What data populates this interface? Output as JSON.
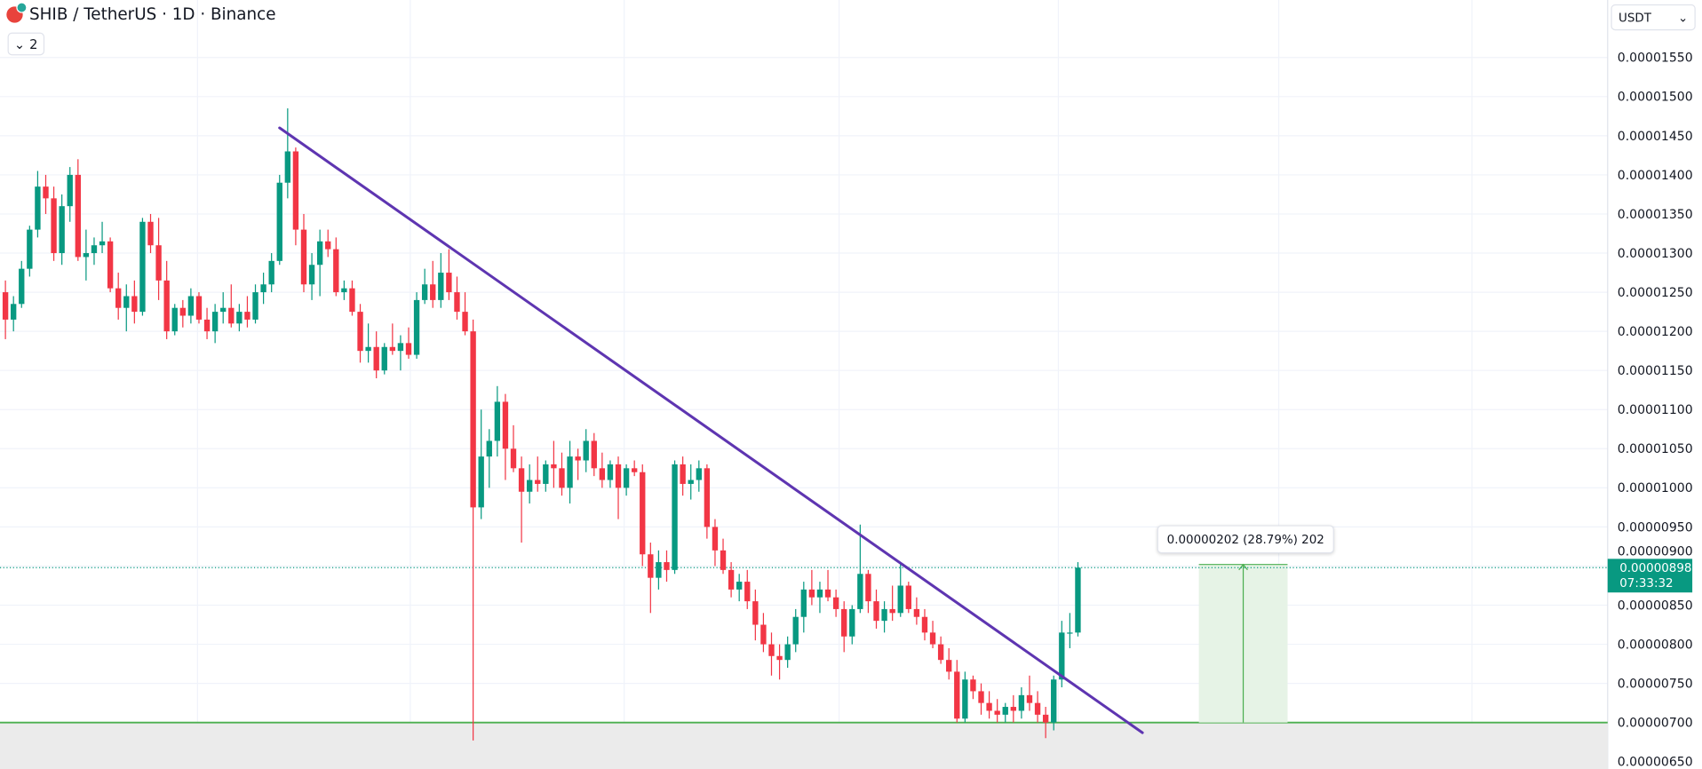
{
  "header": {
    "symbol": "SHIB",
    "title": "SHIB / TetherUS · 1D · Binance",
    "indicator_count": "2",
    "currency": "USDT"
  },
  "colors": {
    "up": "#089981",
    "down": "#f23645",
    "trendline": "#5e35b1",
    "support": "#4caf50",
    "measure_fill": "#e6f3e6",
    "grid": "#f0f3fa"
  },
  "chart_data": {
    "type": "candlestick",
    "title": "SHIB / TetherUS · 1D · Binance",
    "ylim": [
      6.3e-06,
      1.59e-05
    ],
    "y_ticks": [
      "0.00001550",
      "0.00001500",
      "0.00001450",
      "0.00001400",
      "0.00001350",
      "0.00001300",
      "0.00001250",
      "0.00001200",
      "0.00001150",
      "0.00001100",
      "0.00001050",
      "0.00001000",
      "0.00000950",
      "0.00000900",
      "0.00000850",
      "0.00000800",
      "0.00000750",
      "0.00000700",
      "0.00000650"
    ],
    "grid": true,
    "ohlc": [
      [
        1.25e-05,
        1.265e-05,
        1.19e-05,
        1.215e-05
      ],
      [
        1.215e-05,
        1.245e-05,
        1.2e-05,
        1.235e-05
      ],
      [
        1.235e-05,
        1.29e-05,
        1.23e-05,
        1.28e-05
      ],
      [
        1.28e-05,
        1.335e-05,
        1.27e-05,
        1.33e-05
      ],
      [
        1.33e-05,
        1.405e-05,
        1.32e-05,
        1.385e-05
      ],
      [
        1.385e-05,
        1.4e-05,
        1.35e-05,
        1.37e-05
      ],
      [
        1.37e-05,
        1.385e-05,
        1.29e-05,
        1.3e-05
      ],
      [
        1.3e-05,
        1.375e-05,
        1.285e-05,
        1.36e-05
      ],
      [
        1.36e-05,
        1.41e-05,
        1.34e-05,
        1.4e-05
      ],
      [
        1.4e-05,
        1.42e-05,
        1.29e-05,
        1.295e-05
      ],
      [
        1.295e-05,
        1.33e-05,
        1.265e-05,
        1.3e-05
      ],
      [
        1.3e-05,
        1.32e-05,
        1.285e-05,
        1.31e-05
      ],
      [
        1.31e-05,
        1.34e-05,
        1.3e-05,
        1.315e-05
      ],
      [
        1.315e-05,
        1.32e-05,
        1.25e-05,
        1.255e-05
      ],
      [
        1.255e-05,
        1.275e-05,
        1.215e-05,
        1.23e-05
      ],
      [
        1.23e-05,
        1.26e-05,
        1.2e-05,
        1.245e-05
      ],
      [
        1.245e-05,
        1.265e-05,
        1.21e-05,
        1.225e-05
      ],
      [
        1.225e-05,
        1.345e-05,
        1.22e-05,
        1.34e-05
      ],
      [
        1.34e-05,
        1.35e-05,
        1.3e-05,
        1.31e-05
      ],
      [
        1.31e-05,
        1.345e-05,
        1.24e-05,
        1.265e-05
      ],
      [
        1.265e-05,
        1.29e-05,
        1.19e-05,
        1.2e-05
      ],
      [
        1.2e-05,
        1.235e-05,
        1.195e-05,
        1.23e-05
      ],
      [
        1.23e-05,
        1.24e-05,
        1.205e-05,
        1.22e-05
      ],
      [
        1.22e-05,
        1.255e-05,
        1.21e-05,
        1.245e-05
      ],
      [
        1.245e-05,
        1.25e-05,
        1.21e-05,
        1.215e-05
      ],
      [
        1.215e-05,
        1.23e-05,
        1.19e-05,
        1.2e-05
      ],
      [
        1.2e-05,
        1.235e-05,
        1.185e-05,
        1.225e-05
      ],
      [
        1.225e-05,
        1.25e-05,
        1.21e-05,
        1.23e-05
      ],
      [
        1.23e-05,
        1.26e-05,
        1.205e-05,
        1.21e-05
      ],
      [
        1.21e-05,
        1.235e-05,
        1.2e-05,
        1.225e-05
      ],
      [
        1.225e-05,
        1.245e-05,
        1.205e-05,
        1.215e-05
      ],
      [
        1.215e-05,
        1.26e-05,
        1.21e-05,
        1.25e-05
      ],
      [
        1.25e-05,
        1.275e-05,
        1.235e-05,
        1.26e-05
      ],
      [
        1.26e-05,
        1.3e-05,
        1.25e-05,
        1.29e-05
      ],
      [
        1.29e-05,
        1.4e-05,
        1.285e-05,
        1.39e-05
      ],
      [
        1.39e-05,
        1.485e-05,
        1.37e-05,
        1.43e-05
      ],
      [
        1.43e-05,
        1.435e-05,
        1.31e-05,
        1.33e-05
      ],
      [
        1.33e-05,
        1.35e-05,
        1.25e-05,
        1.26e-05
      ],
      [
        1.26e-05,
        1.3e-05,
        1.24e-05,
        1.285e-05
      ],
      [
        1.285e-05,
        1.33e-05,
        1.245e-05,
        1.315e-05
      ],
      [
        1.315e-05,
        1.33e-05,
        1.295e-05,
        1.305e-05
      ],
      [
        1.305e-05,
        1.32e-05,
        1.245e-05,
        1.25e-05
      ],
      [
        1.25e-05,
        1.265e-05,
        1.24e-05,
        1.255e-05
      ],
      [
        1.255e-05,
        1.265e-05,
        1.22e-05,
        1.225e-05
      ],
      [
        1.225e-05,
        1.235e-05,
        1.16e-05,
        1.175e-05
      ],
      [
        1.175e-05,
        1.21e-05,
        1.16e-05,
        1.18e-05
      ],
      [
        1.18e-05,
        1.2e-05,
        1.14e-05,
        1.15e-05
      ],
      [
        1.15e-05,
        1.185e-05,
        1.145e-05,
        1.18e-05
      ],
      [
        1.18e-05,
        1.21e-05,
        1.17e-05,
        1.175e-05
      ],
      [
        1.175e-05,
        1.195e-05,
        1.15e-05,
        1.185e-05
      ],
      [
        1.185e-05,
        1.205e-05,
        1.165e-05,
        1.17e-05
      ],
      [
        1.17e-05,
        1.25e-05,
        1.165e-05,
        1.24e-05
      ],
      [
        1.24e-05,
        1.28e-05,
        1.235e-05,
        1.26e-05
      ],
      [
        1.26e-05,
        1.29e-05,
        1.23e-05,
        1.24e-05
      ],
      [
        1.24e-05,
        1.3e-05,
        1.23e-05,
        1.275e-05
      ],
      [
        1.275e-05,
        1.305e-05,
        1.24e-05,
        1.25e-05
      ],
      [
        1.25e-05,
        1.27e-05,
        1.215e-05,
        1.225e-05
      ],
      [
        1.225e-05,
        1.25e-05,
        1.195e-05,
        1.2e-05
      ],
      [
        1.2e-05,
        1.215e-05,
        6.77e-06,
        9.75e-06
      ],
      [
        9.75e-06,
        1.1e-05,
        9.6e-06,
        1.04e-05
      ],
      [
        1.04e-05,
        1.075e-05,
        1e-05,
        1.06e-05
      ],
      [
        1.06e-05,
        1.13e-05,
        1.04e-05,
        1.11e-05
      ],
      [
        1.11e-05,
        1.12e-05,
        1.01e-05,
        1.05e-05
      ],
      [
        1.05e-05,
        1.08e-05,
        1.02e-05,
        1.025e-05
      ],
      [
        1.025e-05,
        1.04e-05,
        9.3e-06,
        9.95e-06
      ],
      [
        9.95e-06,
        1.03e-05,
        9.8e-06,
        1.01e-05
      ],
      [
        1.01e-05,
        1.04e-05,
        9.95e-06,
        1.005e-05
      ],
      [
        1.005e-05,
        1.035e-05,
        9.95e-06,
        1.03e-05
      ],
      [
        1.03e-05,
        1.06e-05,
        1e-05,
        1.025e-05
      ],
      [
        1.025e-05,
        1.045e-05,
        9.9e-06,
        1e-05
      ],
      [
        1e-05,
        1.06e-05,
        9.8e-06,
        1.04e-05
      ],
      [
        1.04e-05,
        1.05e-05,
        1.01e-05,
        1.035e-05
      ],
      [
        1.035e-05,
        1.075e-05,
        1.02e-05,
        1.06e-05
      ],
      [
        1.06e-05,
        1.07e-05,
        1.015e-05,
        1.025e-05
      ],
      [
        1.025e-05,
        1.045e-05,
        1e-05,
        1.01e-05
      ],
      [
        1.01e-05,
        1.035e-05,
        1e-05,
        1.03e-05
      ],
      [
        1.03e-05,
        1.04e-05,
        9.6e-06,
        1e-05
      ],
      [
        1e-05,
        1.03e-05,
        9.9e-06,
        1.025e-05
      ],
      [
        1.025e-05,
        1.035e-05,
        1.015e-05,
        1.02e-05
      ],
      [
        1.02e-05,
        1.03e-05,
        9e-06,
        9.15e-06
      ],
      [
        9.15e-06,
        9.3e-06,
        8.4e-06,
        8.85e-06
      ],
      [
        8.85e-06,
        9.2e-06,
        8.7e-06,
        9.05e-06
      ],
      [
        9.05e-06,
        9.2e-06,
        8.8e-06,
        8.95e-06
      ],
      [
        8.95e-06,
        1.035e-05,
        8.9e-06,
        1.03e-05
      ],
      [
        1.03e-05,
        1.04e-05,
        9.9e-06,
        1.005e-05
      ],
      [
        1.005e-05,
        1.03e-05,
        9.85e-06,
        1.01e-05
      ],
      [
        1.01e-05,
        1.035e-05,
        9.95e-06,
        1.025e-05
      ],
      [
        1.025e-05,
        1.03e-05,
        9.35e-06,
        9.5e-06
      ],
      [
        9.5e-06,
        9.6e-06,
        9e-06,
        9.2e-06
      ],
      [
        9.2e-06,
        9.35e-06,
        8.9e-06,
        8.95e-06
      ],
      [
        8.95e-06,
        9.05e-06,
        8.6e-06,
        8.7e-06
      ],
      [
        8.7e-06,
        8.9e-06,
        8.55e-06,
        8.8e-06
      ],
      [
        8.8e-06,
        8.95e-06,
        8.45e-06,
        8.55e-06
      ],
      [
        8.55e-06,
        8.7e-06,
        8.05e-06,
        8.25e-06
      ],
      [
        8.25e-06,
        8.4e-06,
        7.9e-06,
        8e-06
      ],
      [
        8e-06,
        8.15e-06,
        7.6e-06,
        7.85e-06
      ],
      [
        7.85e-06,
        8e-06,
        7.55e-06,
        7.8e-06
      ],
      [
        7.8e-06,
        8.1e-06,
        7.7e-06,
        8e-06
      ],
      [
        8e-06,
        8.45e-06,
        7.9e-06,
        8.35e-06
      ],
      [
        8.35e-06,
        8.8e-06,
        8.15e-06,
        8.7e-06
      ],
      [
        8.7e-06,
        8.95e-06,
        8.5e-06,
        8.6e-06
      ],
      [
        8.6e-06,
        8.8e-06,
        8.4e-06,
        8.7e-06
      ],
      [
        8.7e-06,
        8.95e-06,
        8.55e-06,
        8.6e-06
      ],
      [
        8.6e-06,
        8.7e-06,
        8.35e-06,
        8.45e-06
      ],
      [
        8.45e-06,
        8.55e-06,
        7.9e-06,
        8.1e-06
      ],
      [
        8.1e-06,
        8.5e-06,
        8e-06,
        8.45e-06
      ],
      [
        8.45e-06,
        9.53e-06,
        8.4e-06,
        8.9e-06
      ],
      [
        8.9e-06,
        8.95e-06,
        8.4e-06,
        8.55e-06
      ],
      [
        8.55e-06,
        8.7e-06,
        8.2e-06,
        8.3e-06
      ],
      [
        8.3e-06,
        8.55e-06,
        8.15e-06,
        8.45e-06
      ],
      [
        8.45e-06,
        8.75e-06,
        8.3e-06,
        8.4e-06
      ],
      [
        8.4e-06,
        9.05e-06,
        8.35e-06,
        8.75e-06
      ],
      [
        8.75e-06,
        8.8e-06,
        8.4e-06,
        8.45e-06
      ],
      [
        8.45e-06,
        8.6e-06,
        8.25e-06,
        8.35e-06
      ],
      [
        8.35e-06,
        8.45e-06,
        8.05e-06,
        8.15e-06
      ],
      [
        8.15e-06,
        8.3e-06,
        7.95e-06,
        8e-06
      ],
      [
        8e-06,
        8.1e-06,
        7.75e-06,
        7.8e-06
      ],
      [
        7.8e-06,
        7.95e-06,
        7.55e-06,
        7.65e-06
      ],
      [
        7.65e-06,
        7.8e-06,
        7e-06,
        7.05e-06
      ],
      [
        7.05e-06,
        7.65e-06,
        7e-06,
        7.55e-06
      ],
      [
        7.55e-06,
        7.6e-06,
        7.3e-06,
        7.4e-06
      ],
      [
        7.4e-06,
        7.5e-06,
        7.1e-06,
        7.25e-06
      ],
      [
        7.25e-06,
        7.4e-06,
        7.05e-06,
        7.15e-06
      ],
      [
        7.15e-06,
        7.3e-06,
        7e-06,
        7.1e-06
      ],
      [
        7.1e-06,
        7.25e-06,
        7e-06,
        7.2e-06
      ],
      [
        7.2e-06,
        7.35e-06,
        7e-06,
        7.15e-06
      ],
      [
        7.15e-06,
        7.45e-06,
        7.05e-06,
        7.35e-06
      ],
      [
        7.35e-06,
        7.6e-06,
        7.15e-06,
        7.25e-06
      ],
      [
        7.25e-06,
        7.4e-06,
        7e-06,
        7.1e-06
      ],
      [
        7.1e-06,
        7.2e-06,
        6.8e-06,
        7e-06
      ],
      [
        7e-06,
        7.6e-06,
        6.9e-06,
        7.55e-06
      ],
      [
        7.55e-06,
        8.3e-06,
        7.45e-06,
        8.15e-06
      ],
      [
        8.15e-06,
        8.4e-06,
        7.95e-06,
        8.15e-06
      ],
      [
        8.15e-06,
        9.05e-06,
        8.1e-06,
        8.98e-06
      ]
    ],
    "trendline": {
      "from": {
        "bar": 34,
        "price": 1.46e-05
      },
      "to": {
        "bar": 141,
        "price": 6.87e-06
      }
    },
    "support_level": 7e-06,
    "last_price": "0.00000898",
    "countdown": "07:33:32",
    "measure": {
      "from_bar": 148,
      "to_bar": 159,
      "from_price": 7e-06,
      "to_price": 9.02e-06,
      "label": "0.00000202 (28.79%) 202"
    }
  }
}
